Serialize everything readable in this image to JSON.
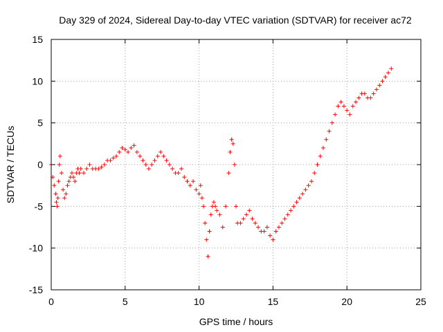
{
  "chart_data": {
    "type": "scatter",
    "title": "Day 329 of 2024, Sidereal Day-to-day VTEC variation (SDTVAR) for receiver ac72",
    "xlabel": "GPS time / hours",
    "ylabel": "SDTVAR / TECUs",
    "xlim": [
      0,
      25
    ],
    "ylim": [
      -15,
      15
    ],
    "x_ticks": [
      0,
      5,
      10,
      15,
      20,
      25
    ],
    "y_ticks": [
      -15,
      -10,
      -5,
      0,
      5,
      10,
      15
    ],
    "x_tick_labels": [
      "0",
      "5",
      "10",
      "15",
      "20",
      "25"
    ],
    "y_tick_labels": [
      "-15",
      "-10",
      "-5",
      "0",
      "5",
      "10",
      "15"
    ],
    "grid": true,
    "marker": "+",
    "color": "#ff0000",
    "series": [
      {
        "name": "SDTVAR",
        "x": [
          0.0,
          0.1,
          0.2,
          0.3,
          0.35,
          0.4,
          0.45,
          0.5,
          0.55,
          0.6,
          0.7,
          0.8,
          0.9,
          1.0,
          1.1,
          1.2,
          1.3,
          1.4,
          1.5,
          1.6,
          1.7,
          1.8,
          1.9,
          2.0,
          2.2,
          2.4,
          2.6,
          2.8,
          3.0,
          3.2,
          3.4,
          3.6,
          3.8,
          4.0,
          4.2,
          4.4,
          4.6,
          4.8,
          5.0,
          5.2,
          5.4,
          5.6,
          5.8,
          6.0,
          6.2,
          6.4,
          6.6,
          6.8,
          7.0,
          7.2,
          7.4,
          7.6,
          7.8,
          8.0,
          8.2,
          8.4,
          8.6,
          8.8,
          9.0,
          9.2,
          9.4,
          9.6,
          9.8,
          10.0,
          10.1,
          10.2,
          10.3,
          10.4,
          10.5,
          10.6,
          10.7,
          10.8,
          10.9,
          11.0,
          11.1,
          11.2,
          11.4,
          11.6,
          11.8,
          12.0,
          12.1,
          12.2,
          12.3,
          12.4,
          12.5,
          12.6,
          12.8,
          13.0,
          13.2,
          13.4,
          13.6,
          13.8,
          14.0,
          14.2,
          14.4,
          14.6,
          14.8,
          15.0,
          15.2,
          15.4,
          15.6,
          15.8,
          16.0,
          16.2,
          16.4,
          16.6,
          16.8,
          17.0,
          17.2,
          17.4,
          17.6,
          17.8,
          18.0,
          18.2,
          18.4,
          18.6,
          18.8,
          19.0,
          19.2,
          19.4,
          19.6,
          19.8,
          20.0,
          20.2,
          20.4,
          20.6,
          20.8,
          21.0,
          21.2,
          21.4,
          21.6,
          21.8,
          22.0,
          22.2,
          22.4,
          22.6,
          22.8,
          23.0
        ],
        "values": [
          0.0,
          -1.5,
          -2.5,
          -3.5,
          -4.5,
          -5.0,
          -4.0,
          -2.0,
          0.0,
          1.0,
          -1.0,
          -3.0,
          -4.0,
          -3.5,
          -2.5,
          -2.0,
          -1.5,
          -1.0,
          -1.5,
          -2.0,
          -1.0,
          -0.5,
          -1.0,
          -0.5,
          -1.0,
          -0.5,
          0.0,
          -0.5,
          -0.5,
          -0.5,
          -0.3,
          0.0,
          0.5,
          0.5,
          0.8,
          1.0,
          1.5,
          2.0,
          1.8,
          1.5,
          2.0,
          2.3,
          1.5,
          1.0,
          0.5,
          0.0,
          -0.5,
          0.0,
          0.5,
          1.0,
          1.5,
          1.0,
          0.5,
          0.0,
          -0.5,
          -1.0,
          -1.0,
          -0.5,
          -1.5,
          -2.0,
          -2.5,
          -2.0,
          -3.0,
          -3.5,
          -2.5,
          -4.0,
          -5.0,
          -7.0,
          -9.0,
          -11.0,
          -8.0,
          -6.0,
          -5.0,
          -4.5,
          -5.0,
          -5.5,
          -6.0,
          -7.5,
          -5.0,
          -1.0,
          1.5,
          3.0,
          2.5,
          0.0,
          -5.0,
          -7.0,
          -7.0,
          -6.5,
          -6.0,
          -5.5,
          -6.5,
          -7.0,
          -7.5,
          -8.0,
          -8.0,
          -7.5,
          -8.5,
          -9.0,
          -8.0,
          -7.5,
          -7.0,
          -6.5,
          -6.0,
          -5.5,
          -5.0,
          -4.5,
          -4.0,
          -3.5,
          -3.0,
          -2.5,
          -2.0,
          -1.0,
          0.0,
          1.0,
          2.0,
          3.0,
          4.0,
          5.0,
          6.0,
          7.0,
          7.5,
          7.0,
          6.5,
          6.0,
          7.0,
          7.5,
          8.0,
          8.5,
          8.5,
          8.0,
          8.0,
          8.5,
          9.0,
          9.5,
          10.0,
          10.5,
          11.0,
          11.5
        ]
      }
    ]
  }
}
